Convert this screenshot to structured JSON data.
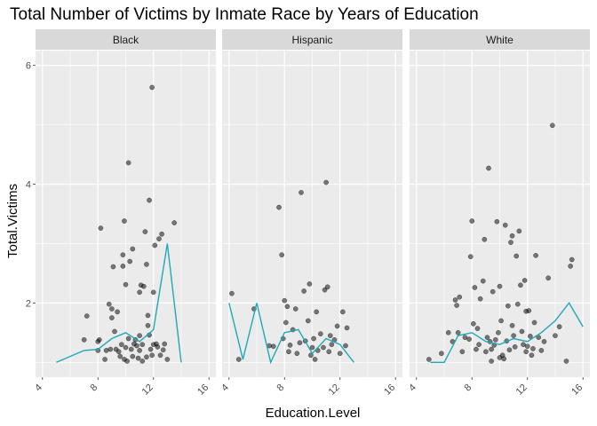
{
  "chart_data": {
    "type": "scatter",
    "title": "Total Number of Victims by Inmate Race by Years of Education",
    "xlabel": "Education.Level",
    "ylabel": "Total.Victims",
    "xlim": [
      3.5,
      16.5
    ],
    "ylim": [
      0.75,
      6.25
    ],
    "x_ticks": [
      4,
      8,
      12,
      16
    ],
    "x_tick_labels": [
      "4",
      "8",
      "12",
      "16"
    ],
    "y_ticks": [
      2,
      4,
      6
    ],
    "y_tick_labels": [
      "2",
      "4",
      "6"
    ],
    "grid": true,
    "legend": "none",
    "colors": {
      "panel_bg": "#ebebeb",
      "strip_bg": "#d9d9d9",
      "grid": "#ffffff",
      "points": "#000000",
      "line": "#1fa8b8"
    },
    "panels": [
      {
        "name": "Black",
        "points": [
          [
            7,
            1.38
          ],
          [
            7.2,
            1.78
          ],
          [
            8,
            1.2
          ],
          [
            8,
            1.35
          ],
          [
            8.1,
            1.38
          ],
          [
            8.2,
            3.26
          ],
          [
            8.5,
            1.05
          ],
          [
            8.6,
            1.2
          ],
          [
            8.8,
            1.98
          ],
          [
            8.9,
            1.22
          ],
          [
            9,
            1.75
          ],
          [
            9,
            1.9
          ],
          [
            9.1,
            2.61
          ],
          [
            9.2,
            1.52
          ],
          [
            9.3,
            1.22
          ],
          [
            9.4,
            1.85
          ],
          [
            9.6,
            1.1
          ],
          [
            9.7,
            1.3
          ],
          [
            9.8,
            2.62
          ],
          [
            9.8,
            2.81
          ],
          [
            9.9,
            3.38
          ],
          [
            9.9,
            1.05
          ],
          [
            10,
            1.25
          ],
          [
            10,
            2.31
          ],
          [
            10.1,
            1.02
          ],
          [
            10.2,
            1.4
          ],
          [
            10.3,
            2.7
          ],
          [
            10.4,
            1.22
          ],
          [
            10.5,
            2.91
          ],
          [
            10.5,
            1.1
          ],
          [
            10.6,
            1.31
          ],
          [
            10.8,
            1.28
          ],
          [
            10.9,
            1.07
          ],
          [
            11,
            1.2
          ],
          [
            11,
            1.45
          ],
          [
            11,
            2.18
          ],
          [
            11.1,
            2.3
          ],
          [
            11.2,
            1.3
          ],
          [
            11.3,
            2.28
          ],
          [
            11.4,
            3.2
          ],
          [
            11.5,
            2.65
          ],
          [
            11.5,
            1.09
          ],
          [
            11.6,
            1.79
          ],
          [
            11.7,
            1.46
          ],
          [
            11.8,
            1.22
          ],
          [
            11.9,
            1.12
          ],
          [
            12,
            1.3
          ],
          [
            12,
            2.18
          ],
          [
            12.1,
            2.97
          ],
          [
            12.2,
            1.31
          ],
          [
            12.3,
            1.26
          ],
          [
            12.4,
            3.08
          ],
          [
            12.5,
            1.12
          ],
          [
            12.6,
            3.16
          ],
          [
            12.8,
            1.31
          ],
          [
            13,
            1.05
          ],
          [
            13.5,
            3.35
          ],
          [
            11.7,
            3.73
          ],
          [
            10.2,
            4.36
          ],
          [
            11.9,
            5.63
          ],
          [
            11.6,
            1.62
          ],
          [
            12.7,
            1.21
          ],
          [
            10.7,
            1.38
          ],
          [
            9.5,
            1.18
          ],
          [
            11.2,
            1.02
          ]
        ],
        "line": [
          [
            5,
            1
          ],
          [
            7,
            1.2
          ],
          [
            8,
            1.22
          ],
          [
            9,
            1.4
          ],
          [
            10,
            1.5
          ],
          [
            11,
            1.35
          ],
          [
            12,
            1.55
          ],
          [
            13,
            3
          ],
          [
            14,
            1
          ]
        ]
      },
      {
        "name": "Hispanic",
        "points": [
          [
            4.2,
            2.16
          ],
          [
            4.7,
            1.05
          ],
          [
            5.8,
            1.9
          ],
          [
            6.9,
            1.28
          ],
          [
            7.2,
            1.27
          ],
          [
            7.6,
            3.61
          ],
          [
            7.8,
            2.81
          ],
          [
            7.9,
            1.4
          ],
          [
            8,
            2.04
          ],
          [
            8.1,
            1.67
          ],
          [
            8.2,
            1.94
          ],
          [
            8.3,
            1.18
          ],
          [
            8.4,
            1.29
          ],
          [
            8.6,
            1.55
          ],
          [
            8.9,
            1.15
          ],
          [
            9.1,
            1.33
          ],
          [
            9.2,
            3.86
          ],
          [
            9.4,
            2.2
          ],
          [
            9.5,
            1.36
          ],
          [
            9.7,
            1.7
          ],
          [
            9.9,
            1.12
          ],
          [
            10,
            1.25
          ],
          [
            10.1,
            1.4
          ],
          [
            10.3,
            1.85
          ],
          [
            10.4,
            1.2
          ],
          [
            10.6,
            1.48
          ],
          [
            10.8,
            1.25
          ],
          [
            10.9,
            2.22
          ],
          [
            11,
            4.03
          ],
          [
            11.1,
            2.27
          ],
          [
            11.2,
            1.18
          ],
          [
            11.4,
            1.3
          ],
          [
            11.6,
            1.38
          ],
          [
            11.8,
            1.61
          ],
          [
            12,
            1.15
          ],
          [
            12.2,
            1.85
          ],
          [
            12.4,
            1.28
          ],
          [
            12.5,
            1.58
          ],
          [
            9.8,
            2.32
          ],
          [
            8.8,
            1.9
          ],
          [
            10.2,
            1.05
          ],
          [
            11.3,
            1.45
          ]
        ],
        "line": [
          [
            4,
            2
          ],
          [
            5,
            1.05
          ],
          [
            6,
            2
          ],
          [
            7,
            1
          ],
          [
            8,
            1.5
          ],
          [
            9,
            1.55
          ],
          [
            10,
            1.15
          ],
          [
            11,
            1.4
          ],
          [
            12,
            1.3
          ],
          [
            13,
            1
          ]
        ]
      },
      {
        "name": "White",
        "points": [
          [
            4.9,
            1.05
          ],
          [
            5.8,
            1.15
          ],
          [
            6.3,
            1.5
          ],
          [
            6.6,
            1.35
          ],
          [
            6.8,
            2.05
          ],
          [
            6.9,
            1.96
          ],
          [
            7,
            1.5
          ],
          [
            7.1,
            2.1
          ],
          [
            7.3,
            1.18
          ],
          [
            7.5,
            1.42
          ],
          [
            7.8,
            1.39
          ],
          [
            7.9,
            2.78
          ],
          [
            8,
            3.38
          ],
          [
            8.1,
            1.65
          ],
          [
            8.2,
            2.26
          ],
          [
            8.3,
            1.22
          ],
          [
            8.4,
            1.57
          ],
          [
            8.5,
            1.3
          ],
          [
            8.6,
            2.07
          ],
          [
            8.8,
            2.37
          ],
          [
            8.9,
            3.07
          ],
          [
            9,
            1.18
          ],
          [
            9.1,
            1.42
          ],
          [
            9.2,
            4.27
          ],
          [
            9.3,
            1.35
          ],
          [
            9.4,
            1.22
          ],
          [
            9.5,
            2.19
          ],
          [
            9.6,
            1.29
          ],
          [
            9.7,
            1.38
          ],
          [
            9.8,
            3.37
          ],
          [
            9.9,
            1.5
          ],
          [
            10,
            1.08
          ],
          [
            10,
            2.28
          ],
          [
            10.1,
            1.7
          ],
          [
            10.2,
            1.12
          ],
          [
            10.3,
            1.06
          ],
          [
            10.4,
            3.31
          ],
          [
            10.5,
            1.36
          ],
          [
            10.6,
            1.95
          ],
          [
            10.7,
            1.21
          ],
          [
            10.8,
            3.02
          ],
          [
            10.9,
            3.13
          ],
          [
            11,
            1.45
          ],
          [
            11.1,
            1.26
          ],
          [
            11.2,
            2.79
          ],
          [
            11.3,
            1.98
          ],
          [
            11.4,
            3.21
          ],
          [
            11.5,
            2.3
          ],
          [
            11.6,
            1.52
          ],
          [
            11.7,
            1.3
          ],
          [
            11.8,
            2.38
          ],
          [
            11.9,
            1.18
          ],
          [
            12,
            1.27
          ],
          [
            12.1,
            1.87
          ],
          [
            12.2,
            1.44
          ],
          [
            12.3,
            1.12
          ],
          [
            12.4,
            1.23
          ],
          [
            12.6,
            2.8
          ],
          [
            12.8,
            1.42
          ],
          [
            13,
            1.2
          ],
          [
            13.2,
            1.35
          ],
          [
            13.5,
            2.42
          ],
          [
            13.8,
            4.99
          ],
          [
            14,
            1.45
          ],
          [
            14.3,
            1.6
          ],
          [
            14.8,
            1.02
          ],
          [
            15.1,
            2.62
          ],
          [
            15.2,
            2.73
          ],
          [
            11.9,
            1.86
          ],
          [
            9.4,
            1.02
          ],
          [
            10.9,
            1.62
          ],
          [
            12.5,
            1.67
          ]
        ],
        "line": [
          [
            5,
            1
          ],
          [
            6,
            1
          ],
          [
            7,
            1.45
          ],
          [
            8,
            1.5
          ],
          [
            9,
            1.35
          ],
          [
            10,
            1.3
          ],
          [
            11,
            1.4
          ],
          [
            12,
            1.35
          ],
          [
            13,
            1.5
          ],
          [
            14,
            1.7
          ],
          [
            15,
            2
          ],
          [
            16,
            1.6
          ]
        ]
      }
    ]
  }
}
